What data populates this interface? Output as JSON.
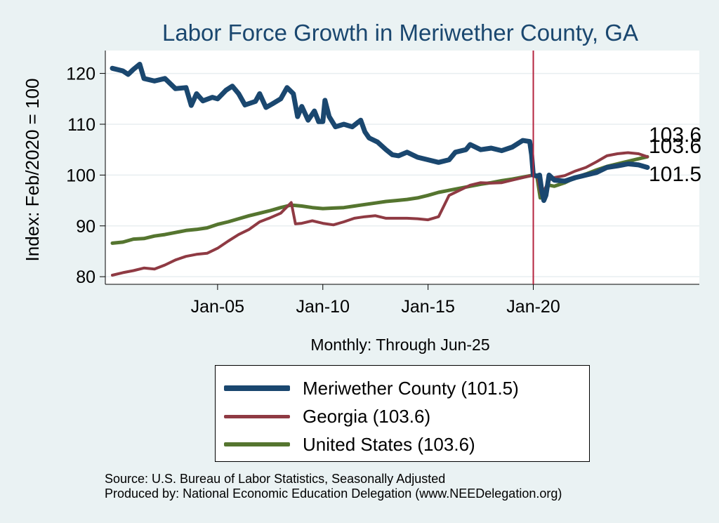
{
  "chart_data": {
    "type": "line",
    "title": "Labor Force Growth in Meriwether  County, GA",
    "ylabel": "Index: Feb/2020 = 100",
    "xlabel": "Monthly: Through Jun-25",
    "x_range": [
      2000.0,
      2025.42
    ],
    "ylim": [
      78.5,
      124.5
    ],
    "yticks": [
      80,
      90,
      100,
      110,
      120
    ],
    "xticks": [
      {
        "label": "Jan-05",
        "x": 2005.0
      },
      {
        "label": "Jan-10",
        "x": 2010.0
      },
      {
        "label": "Jan-15",
        "x": 2015.0
      },
      {
        "label": "Jan-20",
        "x": 2020.0
      }
    ],
    "reference_line_x": 2020.0,
    "reference_line_color": "#b5253f",
    "grid": true,
    "series": [
      {
        "name": "Meriwether  County",
        "legend_label": "Meriwether  County (101.5)",
        "end_label": "101.5",
        "color": "#1a476f",
        "width": 7,
        "points": [
          [
            2000.0,
            121
          ],
          [
            2000.5,
            120.5
          ],
          [
            2000.75,
            119.8
          ],
          [
            2001.0,
            120.8
          ],
          [
            2001.3,
            121.8
          ],
          [
            2001.5,
            119
          ],
          [
            2002.0,
            118.5
          ],
          [
            2002.5,
            119
          ],
          [
            2003.0,
            117
          ],
          [
            2003.5,
            117.2
          ],
          [
            2003.75,
            113.7
          ],
          [
            2004.0,
            116
          ],
          [
            2004.3,
            114.6
          ],
          [
            2004.75,
            115.3
          ],
          [
            2005.0,
            115
          ],
          [
            2005.4,
            116.7
          ],
          [
            2005.7,
            117.5
          ],
          [
            2006.0,
            116
          ],
          [
            2006.3,
            113.8
          ],
          [
            2006.8,
            114.5
          ],
          [
            2007.0,
            116
          ],
          [
            2007.3,
            113.3
          ],
          [
            2007.6,
            114
          ],
          [
            2008.0,
            115
          ],
          [
            2008.3,
            117.2
          ],
          [
            2008.6,
            116
          ],
          [
            2008.8,
            111.5
          ],
          [
            2009.0,
            113.5
          ],
          [
            2009.3,
            110.8
          ],
          [
            2009.6,
            112.6
          ],
          [
            2009.8,
            110.5
          ],
          [
            2010.0,
            110.5
          ],
          [
            2010.1,
            114.7
          ],
          [
            2010.3,
            111.5
          ],
          [
            2010.6,
            109.5
          ],
          [
            2011.0,
            110
          ],
          [
            2011.4,
            109.5
          ],
          [
            2011.8,
            110.8
          ],
          [
            2012.0,
            108.5
          ],
          [
            2012.2,
            107.3
          ],
          [
            2012.6,
            106.5
          ],
          [
            2013.0,
            105
          ],
          [
            2013.3,
            104
          ],
          [
            2013.6,
            103.8
          ],
          [
            2014.0,
            104.5
          ],
          [
            2014.5,
            103.5
          ],
          [
            2015.0,
            103
          ],
          [
            2015.5,
            102.5
          ],
          [
            2016.0,
            103
          ],
          [
            2016.3,
            104.5
          ],
          [
            2016.8,
            105
          ],
          [
            2017.0,
            106
          ],
          [
            2017.5,
            105
          ],
          [
            2018.0,
            105.3
          ],
          [
            2018.5,
            104.8
          ],
          [
            2019.0,
            105.5
          ],
          [
            2019.5,
            106.8
          ],
          [
            2019.83,
            106.6
          ],
          [
            2019.92,
            104
          ],
          [
            2020.0,
            100
          ],
          [
            2020.17,
            99.8
          ],
          [
            2020.3,
            100
          ],
          [
            2020.4,
            97
          ],
          [
            2020.5,
            95
          ],
          [
            2020.6,
            96
          ],
          [
            2020.75,
            100
          ],
          [
            2021.0,
            99
          ],
          [
            2021.5,
            98.8
          ],
          [
            2022.0,
            99.5
          ],
          [
            2022.5,
            100
          ],
          [
            2023.0,
            100.5
          ],
          [
            2023.5,
            101.5
          ],
          [
            2024.0,
            101.8
          ],
          [
            2024.5,
            102.2
          ],
          [
            2025.0,
            102
          ],
          [
            2025.42,
            101.5
          ]
        ]
      },
      {
        "name": "Georgia",
        "legend_label": "Georgia (103.6)",
        "end_label": "103.6",
        "color": "#8f3a43",
        "width": 4,
        "points": [
          [
            2000.0,
            80.3
          ],
          [
            2000.5,
            80.8
          ],
          [
            2001.0,
            81.2
          ],
          [
            2001.5,
            81.7
          ],
          [
            2002.0,
            81.5
          ],
          [
            2002.5,
            82.3
          ],
          [
            2003.0,
            83.3
          ],
          [
            2003.5,
            84
          ],
          [
            2004.0,
            84.4
          ],
          [
            2004.5,
            84.6
          ],
          [
            2005.0,
            85.6
          ],
          [
            2005.5,
            87
          ],
          [
            2006.0,
            88.3
          ],
          [
            2006.5,
            89.3
          ],
          [
            2007.0,
            90.8
          ],
          [
            2007.5,
            91.6
          ],
          [
            2008.0,
            92.5
          ],
          [
            2008.5,
            94.6
          ],
          [
            2008.7,
            90.4
          ],
          [
            2009.0,
            90.5
          ],
          [
            2009.5,
            91
          ],
          [
            2010.0,
            90.5
          ],
          [
            2010.5,
            90.2
          ],
          [
            2011.0,
            90.8
          ],
          [
            2011.5,
            91.5
          ],
          [
            2012.0,
            91.8
          ],
          [
            2012.5,
            92
          ],
          [
            2013.0,
            91.5
          ],
          [
            2013.5,
            91.5
          ],
          [
            2014.0,
            91.5
          ],
          [
            2014.5,
            91.4
          ],
          [
            2015.0,
            91.2
          ],
          [
            2015.5,
            91.8
          ],
          [
            2016.0,
            96
          ],
          [
            2016.5,
            97
          ],
          [
            2017.0,
            98
          ],
          [
            2017.5,
            98.5
          ],
          [
            2018.0,
            98.4
          ],
          [
            2018.5,
            98.5
          ],
          [
            2019.0,
            99
          ],
          [
            2019.5,
            99.5
          ],
          [
            2020.0,
            100
          ],
          [
            2020.2,
            99.8
          ],
          [
            2020.35,
            96.5
          ],
          [
            2020.5,
            96.8
          ],
          [
            2020.75,
            99
          ],
          [
            2021.0,
            99.5
          ],
          [
            2021.5,
            99.9
          ],
          [
            2022.0,
            100.8
          ],
          [
            2022.5,
            101.5
          ],
          [
            2023.0,
            102.6
          ],
          [
            2023.5,
            103.8
          ],
          [
            2024.0,
            104.2
          ],
          [
            2024.5,
            104.4
          ],
          [
            2025.0,
            104.2
          ],
          [
            2025.42,
            103.6
          ]
        ]
      },
      {
        "name": "United States",
        "legend_label": "United States (103.6)",
        "end_label": "103.6",
        "color": "#55752f",
        "width": 5,
        "points": [
          [
            2000.0,
            86.6
          ],
          [
            2000.5,
            86.8
          ],
          [
            2001.0,
            87.4
          ],
          [
            2001.5,
            87.5
          ],
          [
            2002.0,
            88
          ],
          [
            2002.5,
            88.3
          ],
          [
            2003.0,
            88.7
          ],
          [
            2003.5,
            89.1
          ],
          [
            2004.0,
            89.3
          ],
          [
            2004.5,
            89.6
          ],
          [
            2005.0,
            90.3
          ],
          [
            2005.5,
            90.8
          ],
          [
            2006.0,
            91.4
          ],
          [
            2006.5,
            92
          ],
          [
            2007.0,
            92.5
          ],
          [
            2007.5,
            93
          ],
          [
            2008.0,
            93.6
          ],
          [
            2008.5,
            94.1
          ],
          [
            2009.0,
            93.9
          ],
          [
            2009.5,
            93.6
          ],
          [
            2010.0,
            93.4
          ],
          [
            2010.5,
            93.5
          ],
          [
            2011.0,
            93.6
          ],
          [
            2011.5,
            93.9
          ],
          [
            2012.0,
            94.2
          ],
          [
            2012.5,
            94.5
          ],
          [
            2013.0,
            94.8
          ],
          [
            2013.5,
            95
          ],
          [
            2014.0,
            95.2
          ],
          [
            2014.5,
            95.5
          ],
          [
            2015.0,
            96
          ],
          [
            2015.5,
            96.6
          ],
          [
            2016.0,
            97
          ],
          [
            2016.5,
            97.4
          ],
          [
            2017.0,
            97.8
          ],
          [
            2017.5,
            98.2
          ],
          [
            2018.0,
            98.5
          ],
          [
            2018.5,
            98.9
          ],
          [
            2019.0,
            99.2
          ],
          [
            2019.5,
            99.6
          ],
          [
            2020.0,
            100
          ],
          [
            2020.17,
            99.8
          ],
          [
            2020.33,
            95.5
          ],
          [
            2020.5,
            97
          ],
          [
            2020.75,
            98
          ],
          [
            2021.0,
            97.8
          ],
          [
            2021.5,
            98.5
          ],
          [
            2022.0,
            99.5
          ],
          [
            2022.5,
            100.2
          ],
          [
            2023.0,
            101
          ],
          [
            2023.5,
            101.7
          ],
          [
            2024.0,
            102.2
          ],
          [
            2024.5,
            102.7
          ],
          [
            2025.0,
            103.2
          ],
          [
            2025.42,
            103.6
          ]
        ]
      }
    ]
  },
  "legend": {
    "items": [
      {
        "label": "Meriwether  County (101.5)",
        "color": "#1a476f"
      },
      {
        "label": "Georgia (103.6)",
        "color": "#8f3a43"
      },
      {
        "label": "United States (103.6)",
        "color": "#55752f"
      }
    ]
  },
  "footer": {
    "source": "Source: U.S. Bureau of Labor Statistics, Seasonally Adjusted",
    "produced_by": "Produced by: National Economic Education Delegation (www.NEEDelegation.org)"
  }
}
